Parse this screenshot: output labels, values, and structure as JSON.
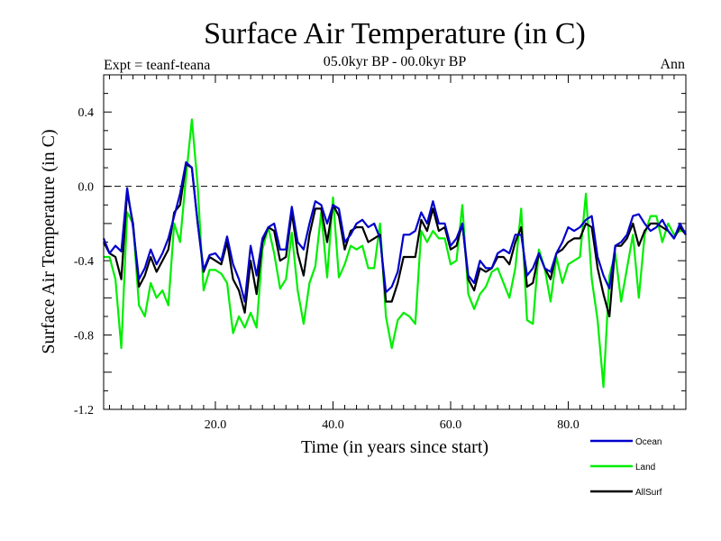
{
  "chart_data": {
    "type": "line",
    "title": "Surface Air Temperature (in C)",
    "subtitle": "05.0kyr BP - 00.0kyr BP",
    "left_label": "Expt = teanf-teana",
    "right_label": "Ann",
    "xlabel": "Time (in years since start)",
    "ylabel": "Surface Air Temperature (in C)",
    "xlim": [
      1,
      100
    ],
    "ylim": [
      -1.2,
      0.6
    ],
    "xticks": [
      20,
      40,
      60,
      80
    ],
    "xtick_labels": [
      "20.0",
      "40.0",
      "60.0",
      "80.0"
    ],
    "yticks": [
      0.4,
      0.0,
      -0.4,
      -0.8,
      -1.2
    ],
    "ytick_labels": [
      "0.4",
      "0.0",
      "-0.4",
      "-0.8",
      "-1.2"
    ],
    "zero_line": true,
    "x": [
      1,
      2,
      3,
      4,
      5,
      6,
      7,
      8,
      9,
      10,
      11,
      12,
      13,
      14,
      15,
      16,
      17,
      18,
      19,
      20,
      21,
      22,
      23,
      24,
      25,
      26,
      27,
      28,
      29,
      30,
      31,
      32,
      33,
      34,
      35,
      36,
      37,
      38,
      39,
      40,
      41,
      42,
      43,
      44,
      45,
      46,
      47,
      48,
      49,
      50,
      51,
      52,
      53,
      54,
      55,
      56,
      57,
      58,
      59,
      60,
      61,
      62,
      63,
      64,
      65,
      66,
      67,
      68,
      69,
      70,
      71,
      72,
      73,
      74,
      75,
      76,
      77,
      78,
      79,
      80,
      81,
      82,
      83,
      84,
      85,
      86,
      87,
      88,
      89,
      90,
      91,
      92,
      93,
      94,
      95,
      96,
      97,
      98,
      99,
      100
    ],
    "series": [
      {
        "name": "Ocean",
        "color": "#0000cc",
        "values": [
          -0.28,
          -0.36,
          -0.32,
          -0.35,
          -0.01,
          -0.22,
          -0.5,
          -0.44,
          -0.34,
          -0.42,
          -0.36,
          -0.28,
          -0.16,
          -0.04,
          0.13,
          0.1,
          -0.2,
          -0.45,
          -0.37,
          -0.36,
          -0.4,
          -0.27,
          -0.42,
          -0.5,
          -0.62,
          -0.32,
          -0.48,
          -0.28,
          -0.22,
          -0.2,
          -0.34,
          -0.34,
          -0.11,
          -0.3,
          -0.34,
          -0.2,
          -0.08,
          -0.1,
          -0.2,
          -0.1,
          -0.12,
          -0.3,
          -0.26,
          -0.2,
          -0.18,
          -0.22,
          -0.2,
          -0.28,
          -0.57,
          -0.54,
          -0.46,
          -0.26,
          -0.26,
          -0.24,
          -0.14,
          -0.2,
          -0.08,
          -0.2,
          -0.2,
          -0.32,
          -0.28,
          -0.2,
          -0.48,
          -0.52,
          -0.4,
          -0.44,
          -0.44,
          -0.36,
          -0.34,
          -0.36,
          -0.26,
          -0.26,
          -0.48,
          -0.44,
          -0.36,
          -0.44,
          -0.46,
          -0.36,
          -0.3,
          -0.22,
          -0.24,
          -0.22,
          -0.18,
          -0.16,
          -0.38,
          -0.48,
          -0.55,
          -0.32,
          -0.3,
          -0.26,
          -0.16,
          -0.15,
          -0.2,
          -0.24,
          -0.22,
          -0.18,
          -0.24,
          -0.28,
          -0.2,
          -0.26
        ]
      },
      {
        "name": "Land",
        "color": "#00ee00",
        "values": [
          -0.38,
          -0.38,
          -0.5,
          -0.87,
          -0.14,
          -0.2,
          -0.64,
          -0.7,
          -0.52,
          -0.6,
          -0.56,
          -0.64,
          -0.2,
          -0.3,
          0.05,
          0.36,
          0.0,
          -0.56,
          -0.45,
          -0.45,
          -0.47,
          -0.52,
          -0.79,
          -0.7,
          -0.76,
          -0.68,
          -0.76,
          -0.34,
          -0.22,
          -0.36,
          -0.55,
          -0.5,
          -0.25,
          -0.56,
          -0.74,
          -0.52,
          -0.43,
          -0.14,
          -0.49,
          -0.06,
          -0.49,
          -0.42,
          -0.32,
          -0.34,
          -0.32,
          -0.44,
          -0.44,
          -0.2,
          -0.7,
          -0.87,
          -0.72,
          -0.68,
          -0.7,
          -0.74,
          -0.24,
          -0.3,
          -0.24,
          -0.28,
          -0.28,
          -0.42,
          -0.4,
          -0.1,
          -0.58,
          -0.66,
          -0.58,
          -0.54,
          -0.46,
          -0.44,
          -0.52,
          -0.6,
          -0.44,
          -0.12,
          -0.72,
          -0.74,
          -0.34,
          -0.44,
          -0.62,
          -0.38,
          -0.52,
          -0.42,
          -0.4,
          -0.38,
          -0.04,
          -0.5,
          -0.72,
          -1.08,
          -0.48,
          -0.36,
          -0.62,
          -0.44,
          -0.26,
          -0.6,
          -0.26,
          -0.16,
          -0.16,
          -0.3,
          -0.2,
          -0.26,
          -0.24,
          -0.24
        ]
      },
      {
        "name": "AllSurf",
        "color": "#000000",
        "values": [
          -0.3,
          -0.36,
          -0.38,
          -0.5,
          -0.03,
          -0.2,
          -0.54,
          -0.48,
          -0.38,
          -0.46,
          -0.4,
          -0.34,
          -0.14,
          -0.1,
          0.12,
          0.1,
          -0.2,
          -0.46,
          -0.38,
          -0.4,
          -0.42,
          -0.3,
          -0.5,
          -0.56,
          -0.68,
          -0.4,
          -0.58,
          -0.3,
          -0.22,
          -0.24,
          -0.4,
          -0.38,
          -0.14,
          -0.36,
          -0.48,
          -0.26,
          -0.12,
          -0.12,
          -0.3,
          -0.1,
          -0.16,
          -0.34,
          -0.24,
          -0.22,
          -0.22,
          -0.3,
          -0.28,
          -0.26,
          -0.62,
          -0.62,
          -0.52,
          -0.38,
          -0.38,
          -0.38,
          -0.18,
          -0.24,
          -0.12,
          -0.24,
          -0.22,
          -0.34,
          -0.32,
          -0.2,
          -0.5,
          -0.56,
          -0.44,
          -0.46,
          -0.44,
          -0.38,
          -0.38,
          -0.42,
          -0.3,
          -0.22,
          -0.54,
          -0.52,
          -0.36,
          -0.44,
          -0.5,
          -0.36,
          -0.34,
          -0.3,
          -0.28,
          -0.28,
          -0.2,
          -0.22,
          -0.44,
          -0.58,
          -0.7,
          -0.32,
          -0.32,
          -0.28,
          -0.2,
          -0.32,
          -0.24,
          -0.2,
          -0.2,
          -0.22,
          -0.24,
          -0.28,
          -0.22,
          -0.26
        ]
      }
    ],
    "legend_position": "bottom-right"
  }
}
